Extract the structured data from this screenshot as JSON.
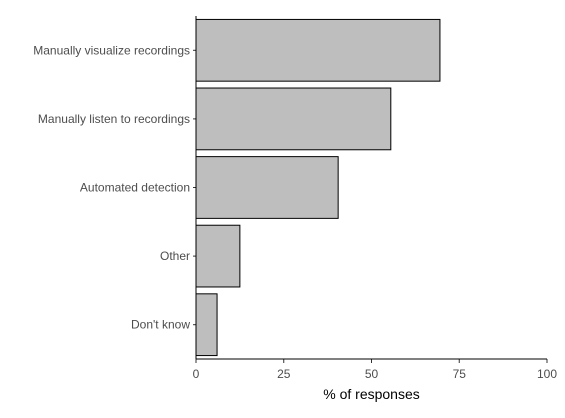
{
  "chart_data": {
    "type": "bar",
    "orientation": "horizontal",
    "categories": [
      "Manually visualize recordings",
      "Manually listen to recordings",
      "Automated detection",
      "Other",
      "Don't know"
    ],
    "values": [
      69.5,
      55.5,
      40.5,
      12.5,
      6
    ],
    "xlabel": "% of responses",
    "ylabel": "",
    "xlim": [
      0,
      100
    ],
    "xticks": [
      0,
      25,
      50,
      75,
      100
    ],
    "grid": false,
    "colors": {
      "bar_fill": "#bebebe",
      "bar_stroke": "#000000",
      "text": "#4d4d4d"
    }
  }
}
